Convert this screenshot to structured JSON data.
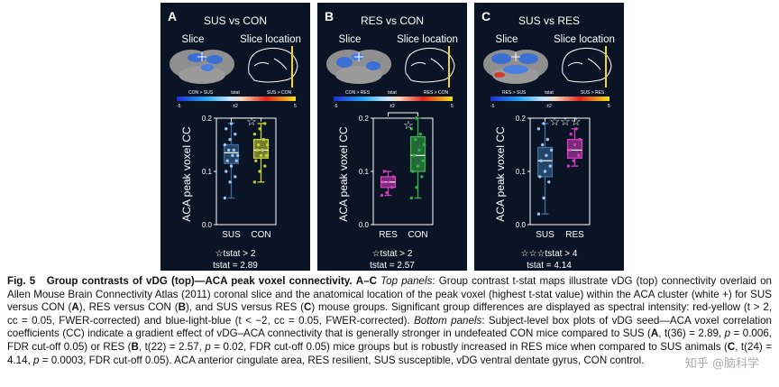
{
  "colors": {
    "panel_bg": "#0b1424",
    "sus": "#3d6d9e",
    "con": "#c8d33a",
    "res": "#d63ec0",
    "con_green": "#36b34a",
    "accent_yellow": "#f3d61a"
  },
  "panels": [
    {
      "letter": "A",
      "title": "SUS vs CON",
      "slice_label": "Slice",
      "location_label": "Slice location",
      "scale_left": "CON > SUS",
      "scale_center": "tstat",
      "scale_right": "SUS > CON",
      "scale_tick_mid": "±2",
      "scale_tick_left": "-5",
      "scale_tick_right": "5",
      "stars": "☆",
      "legend_line1": "☆tstat > 2",
      "legend_line2": "tstat = 2.89"
    },
    {
      "letter": "B",
      "title": "RES vs CON",
      "slice_label": "Slice",
      "location_label": "Slice location",
      "scale_left": "CON > RES",
      "scale_center": "tstat",
      "scale_right": "RES > CON",
      "scale_tick_mid": "±2",
      "scale_tick_left": "-5",
      "scale_tick_right": "5",
      "stars": "☆",
      "legend_line1": "☆tstat > 2",
      "legend_line2": "tstat = 2.57"
    },
    {
      "letter": "C",
      "title": "SUS vs RES",
      "slice_label": "Slice",
      "location_label": "Slice location",
      "scale_left": "RES > SUS",
      "scale_center": "tstat",
      "scale_right": "SUS > RES",
      "scale_tick_mid": "±2",
      "scale_tick_left": "-5",
      "scale_tick_right": "5",
      "stars": "☆☆☆",
      "legend_line1": "☆☆☆tstat > 4",
      "legend_line2": "tstat = 4.14"
    }
  ],
  "chart_data": [
    {
      "type": "box",
      "ylabel": "ACA peak voxel CC",
      "ylim": [
        0.0,
        0.2
      ],
      "yticks": [
        "0.0",
        "0.1",
        "0.2"
      ],
      "categories": [
        "SUS",
        "CON"
      ],
      "boxes": [
        {
          "name": "SUS",
          "q1": 0.115,
          "median": 0.135,
          "q3": 0.15,
          "whisker_low": 0.05,
          "whisker_high": 0.19,
          "color": "#3d6d9e",
          "points": [
            0.05,
            0.08,
            0.09,
            0.1,
            0.11,
            0.12,
            0.12,
            0.13,
            0.13,
            0.14,
            0.14,
            0.15,
            0.16,
            0.17,
            0.18,
            0.19
          ]
        },
        {
          "name": "CON",
          "q1": 0.125,
          "median": 0.14,
          "q3": 0.16,
          "whisker_low": 0.08,
          "whisker_high": 0.19,
          "color": "#c8d33a",
          "points": [
            0.08,
            0.1,
            0.11,
            0.12,
            0.13,
            0.13,
            0.14,
            0.14,
            0.15,
            0.15,
            0.16,
            0.17,
            0.18,
            0.19
          ]
        }
      ]
    },
    {
      "type": "box",
      "ylabel": "ACA peak voxel CC",
      "ylim": [
        0.0,
        0.2
      ],
      "yticks": [
        "0.0",
        "0.1",
        "0.2"
      ],
      "categories": [
        "RES",
        "CON"
      ],
      "boxes": [
        {
          "name": "RES",
          "q1": 0.07,
          "median": 0.08,
          "q3": 0.09,
          "whisker_low": 0.055,
          "whisker_high": 0.1,
          "color": "#d63ec0",
          "points": [
            0.055,
            0.06,
            0.07,
            0.08,
            0.08,
            0.09,
            0.1
          ]
        },
        {
          "name": "CON",
          "q1": 0.1,
          "median": 0.13,
          "q3": 0.165,
          "whisker_low": 0.05,
          "whisker_high": 0.2,
          "color": "#36b34a",
          "points": [
            0.05,
            0.07,
            0.09,
            0.1,
            0.11,
            0.12,
            0.13,
            0.14,
            0.15,
            0.16,
            0.17,
            0.18,
            0.2
          ]
        }
      ]
    },
    {
      "type": "box",
      "ylabel": "ACA peak voxel CC",
      "ylim": [
        0.0,
        0.2
      ],
      "yticks": [
        "0.0",
        "0.1",
        "0.2"
      ],
      "categories": [
        "SUS",
        "RES"
      ],
      "boxes": [
        {
          "name": "SUS",
          "q1": 0.09,
          "median": 0.12,
          "q3": 0.145,
          "whisker_low": 0.02,
          "whisker_high": 0.19,
          "color": "#3d6d9e",
          "points": [
            0.02,
            0.05,
            0.08,
            0.09,
            0.1,
            0.11,
            0.12,
            0.13,
            0.14,
            0.15,
            0.16,
            0.18,
            0.19
          ]
        },
        {
          "name": "RES",
          "q1": 0.125,
          "median": 0.14,
          "q3": 0.16,
          "whisker_low": 0.11,
          "whisker_high": 0.18,
          "color": "#d63ec0",
          "points": [
            0.11,
            0.12,
            0.13,
            0.14,
            0.15,
            0.16,
            0.17,
            0.18
          ]
        }
      ]
    }
  ],
  "caption": {
    "fig_label": "Fig. 5",
    "title": "Group contrasts of vDG (top)—ACA peak voxel connectivity.",
    "range": "A–C",
    "part1_italic": "Top panels",
    "part1": ": Group contrast t-stat maps illustrate vDG (top) connectivity overlaid on Allen Mouse Brain Connectivity Atlas (2011) coronal slice and the anatomical location of the peak voxel (highest t-stat value) within the ACA cluster (white +) for SUS versus CON (",
    "A": "A",
    "part2": "), RES versus CON (",
    "B": "B",
    "part3": "), and SUS versus RES (",
    "C": "C",
    "part4": ") mouse groups. Significant group differences are displayed as spectral intensity: red-yellow (t > 2, cc = 0.05, FWER-corrected) and blue-light-blue (t < −2, cc = 0.05, FWER-corrected).",
    "part5_italic": "Bottom panels",
    "part5": ": Subject-level box plots of vDG seed—ACA voxel correlation coefficients (CC) indicate a gradient effect of vDG–ACA connectivity that is generally stronger in undefeated CON mice compared to SUS (",
    "A2": "A",
    "part6": ", t(36) = 2.89,",
    "p1": "p",
    "part7": "= 0.006, FDR cut-off 0.05) or RES (",
    "B2": "B",
    "part8": ", t(22) = 2.57,",
    "p2": "p",
    "part9": "= 0.02, FDR cut-off 0.05) mice groups but is robustly increased in RES mice when compared to SUS animals (",
    "C2": "C",
    "part10": ", t(24) = 4.14,",
    "p3": "p",
    "part11": "= 0.0003, FDR cut-off 0.05). ACA anterior cingulate area, RES resilient, SUS susceptible, vDG ventral dentate gyrus, CON control."
  },
  "watermark": "知乎 @脑科学"
}
